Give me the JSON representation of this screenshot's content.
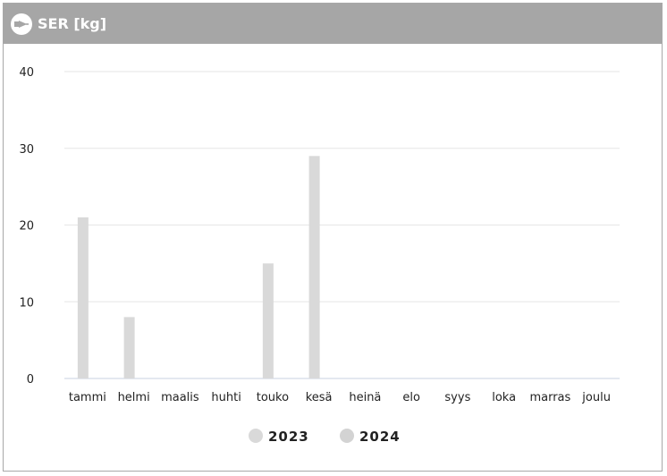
{
  "widget": {
    "title": "SER [kg]",
    "icon": "plug-icon"
  },
  "colors": {
    "header_bg": "#a6a6a6",
    "series_2023": "#d9d9d9",
    "series_2024": "#d3d3d3",
    "grid": "#e6e6e6",
    "axis": "#c8d2e0"
  },
  "chart_data": {
    "type": "bar",
    "title": "SER [kg]",
    "categories": [
      "tammi",
      "helmi",
      "maalis",
      "huhti",
      "touko",
      "kesä",
      "heinä",
      "elo",
      "syys",
      "loka",
      "marras",
      "joulu"
    ],
    "series": [
      {
        "name": "2023",
        "values": [
          21,
          8,
          0,
          0,
          15,
          29,
          0,
          0,
          0,
          0,
          0,
          0
        ]
      },
      {
        "name": "2024",
        "values": [
          0,
          0,
          0,
          0,
          0,
          0,
          0,
          0,
          0,
          0,
          0,
          0
        ]
      }
    ],
    "ylim": [
      0,
      40
    ],
    "yticks": [
      0,
      10,
      20,
      30,
      40
    ],
    "grid": true,
    "legend_position": "bottom"
  }
}
